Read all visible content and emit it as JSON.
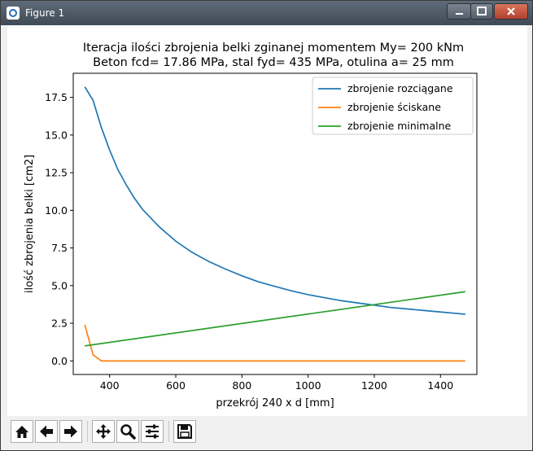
{
  "window": {
    "title": "Figure 1",
    "controls": [
      "minimize",
      "maximize",
      "close"
    ]
  },
  "toolbar": {
    "buttons": [
      {
        "name": "home",
        "icon": "home-icon"
      },
      {
        "name": "back",
        "icon": "arrow-left-icon"
      },
      {
        "name": "forward",
        "icon": "arrow-right-icon"
      },
      {
        "name": "pan",
        "icon": "move-icon"
      },
      {
        "name": "zoom",
        "icon": "magnifier-icon"
      },
      {
        "name": "configure-subplots",
        "icon": "sliders-icon"
      },
      {
        "name": "save",
        "icon": "floppy-disk-icon"
      }
    ]
  },
  "chart_data": {
    "type": "line",
    "title": "Iteracja ilości zbrojenia belki zginanej momentem My= 200 kNm",
    "subtitle": "Beton fcd= 17.86 MPa, stal fyd= 435 MPa, otulina a= 25 mm",
    "xlabel": "przekrój 240 x d [mm]",
    "ylabel": "ilość zbrojenia belki [cm2]",
    "xlim": [
      290,
      1510
    ],
    "ylim": [
      -0.9,
      19.1
    ],
    "xticks": [
      400,
      600,
      800,
      1000,
      1200,
      1400
    ],
    "yticks": [
      0.0,
      2.5,
      5.0,
      7.5,
      10.0,
      12.5,
      15.0,
      17.5
    ],
    "ytick_labels": [
      "0.0",
      "2.5",
      "5.0",
      "7.5",
      "10.0",
      "12.5",
      "15.0",
      "17.5"
    ],
    "legend_position": "top-right",
    "grid": false,
    "series": [
      {
        "name": "zbrojenie rozciągane",
        "color": "#1f77b4",
        "x": [
          325,
          350,
          375,
          400,
          425,
          450,
          475,
          500,
          550,
          600,
          650,
          700,
          750,
          800,
          850,
          900,
          950,
          1000,
          1050,
          1100,
          1150,
          1200,
          1250,
          1300,
          1350,
          1400,
          1450,
          1475
        ],
        "y": [
          18.2,
          17.3,
          15.5,
          14.0,
          12.7,
          11.7,
          10.8,
          10.05,
          8.9,
          7.95,
          7.2,
          6.6,
          6.1,
          5.65,
          5.25,
          4.95,
          4.65,
          4.4,
          4.2,
          4.0,
          3.85,
          3.7,
          3.55,
          3.45,
          3.35,
          3.25,
          3.15,
          3.1
        ]
      },
      {
        "name": "zbrojenie ściskane",
        "color": "#ff7f0e",
        "x": [
          325,
          350,
          375,
          400,
          600,
          800,
          1000,
          1200,
          1400,
          1475
        ],
        "y": [
          2.4,
          0.4,
          0.0,
          0.0,
          0.0,
          0.0,
          0.0,
          0.0,
          0.0,
          0.0
        ]
      },
      {
        "name": "zbrojenie minimalne",
        "color": "#2ca02c",
        "x": [
          325,
          1475
        ],
        "y": [
          1.0,
          4.6
        ]
      }
    ]
  }
}
